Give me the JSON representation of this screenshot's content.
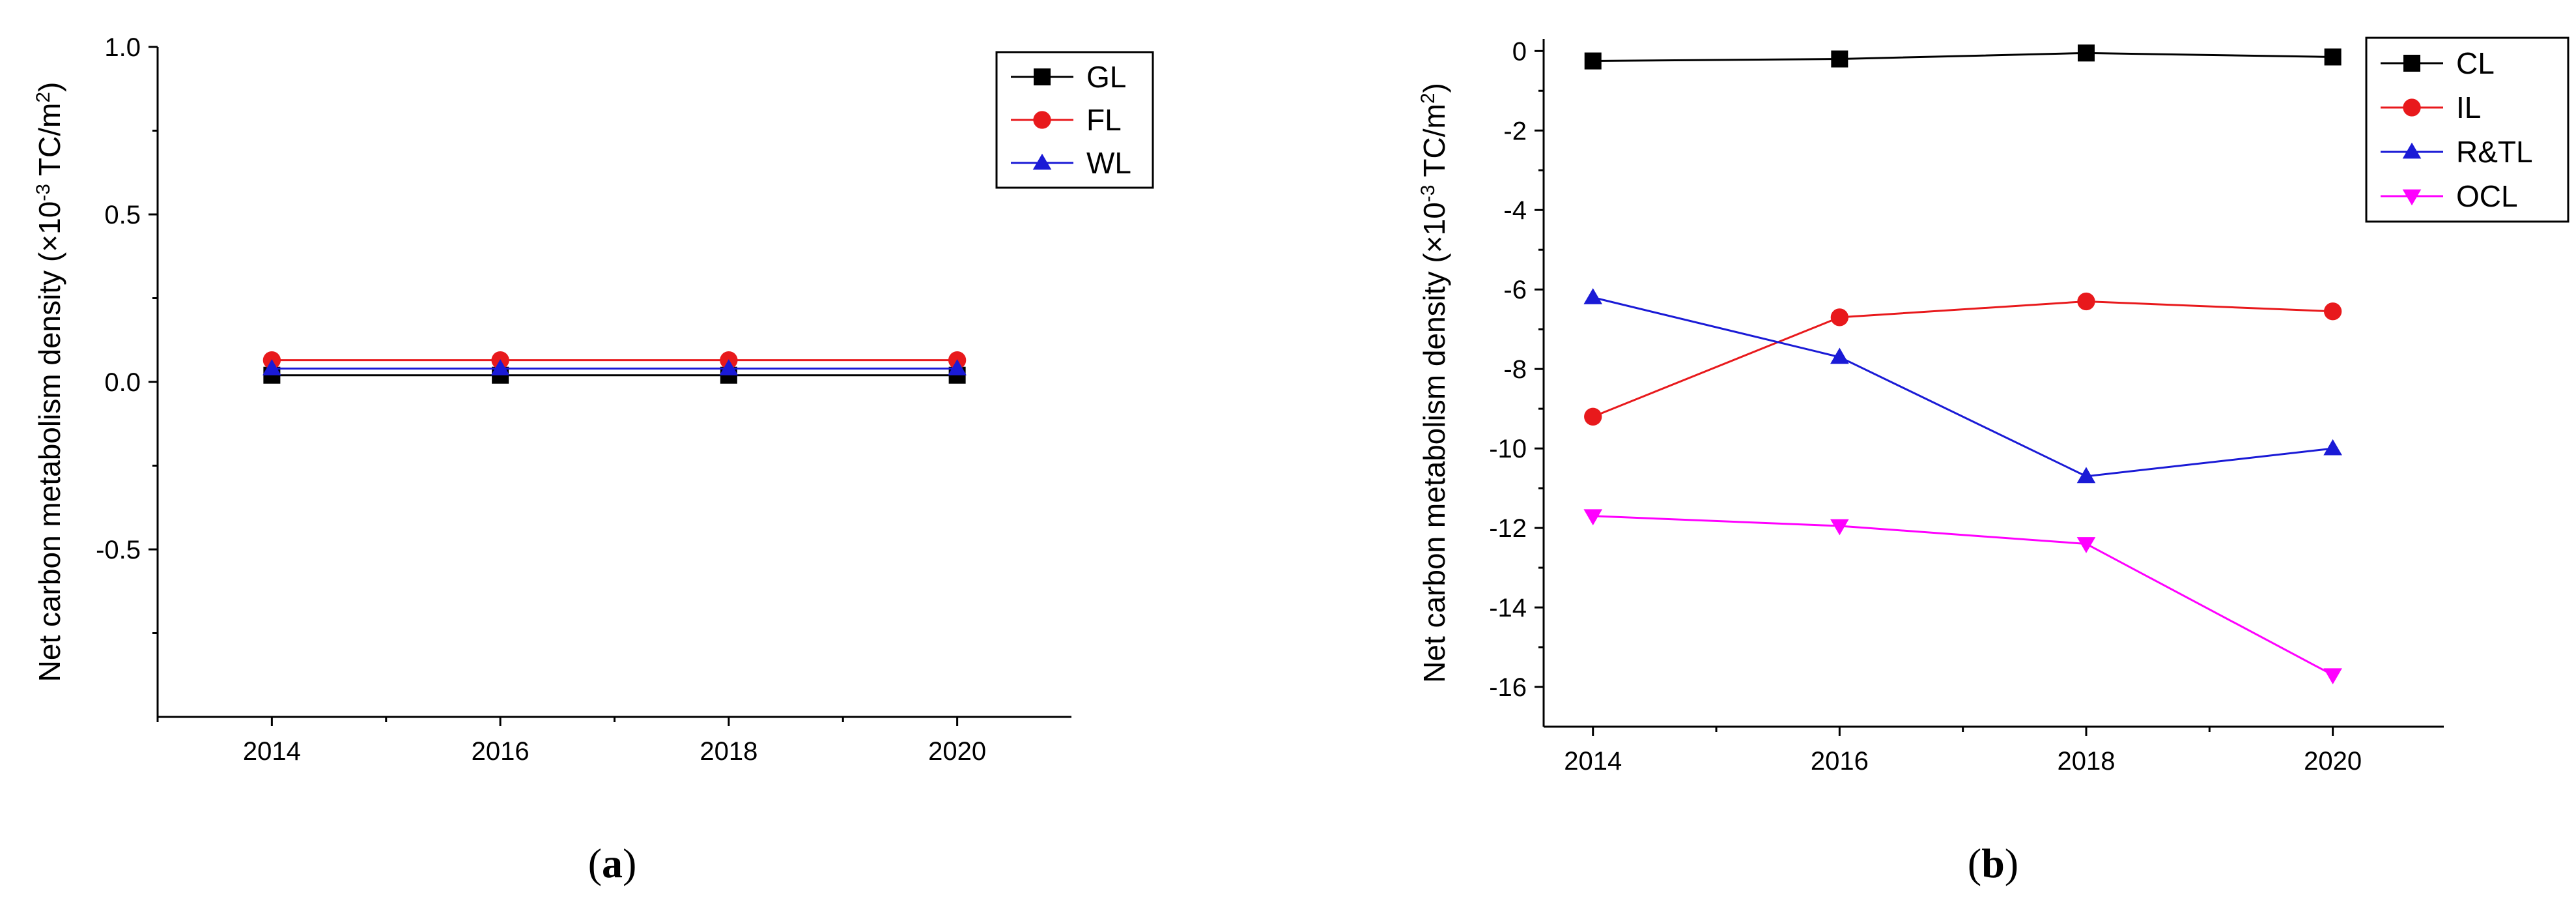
{
  "chart_data": [
    {
      "type": "line",
      "panel_label_pre": "(",
      "panel_label_letter": "a",
      "panel_label_post": ")",
      "ylabel_main": "Net carbon metabolism density (×10",
      "ylabel_exp": "-3",
      "ylabel_unit": " TC/m",
      "ylabel_sq": "2",
      "ylabel_close": ")",
      "x": [
        2014,
        2016,
        2018,
        2020
      ],
      "xlim": [
        2013,
        2021
      ],
      "ylim": [
        -1.0,
        1.0
      ],
      "xticks": [
        2014,
        2016,
        2018,
        2020
      ],
      "yticks": [
        -0.5,
        0.0,
        0.5,
        1.0
      ],
      "ytick_labels": [
        "-0.5",
        "0.0",
        "0.5",
        "1.0"
      ],
      "legend_position": "top-right",
      "series": [
        {
          "name": "GL",
          "values": [
            0.02,
            0.02,
            0.02,
            0.02
          ],
          "color": "#000000",
          "marker": "square"
        },
        {
          "name": "FL",
          "values": [
            0.065,
            0.065,
            0.065,
            0.065
          ],
          "color": "#e8191c",
          "marker": "circle"
        },
        {
          "name": "WL",
          "values": [
            0.04,
            0.04,
            0.04,
            0.04
          ],
          "color": "#1a1ad6",
          "marker": "triangle-up"
        }
      ]
    },
    {
      "type": "line",
      "panel_label_pre": "(",
      "panel_label_letter": "b",
      "panel_label_post": ")",
      "ylabel_main": "Net carbon metabolism density (×10",
      "ylabel_exp": "-3",
      "ylabel_unit": " TC/m",
      "ylabel_sq": "2",
      "ylabel_close": ")",
      "x": [
        2014,
        2016,
        2018,
        2020
      ],
      "xlim": [
        2013.6,
        2020.9
      ],
      "ylim": [
        -17,
        0.3
      ],
      "xticks": [
        2014,
        2016,
        2018,
        2020
      ],
      "yticks": [
        0,
        -2,
        -4,
        -6,
        -8,
        -10,
        -12,
        -14,
        -16
      ],
      "ytick_labels": [
        "0",
        "-2",
        "-4",
        "-6",
        "-8",
        "-10",
        "-12",
        "-14",
        "-16"
      ],
      "legend_position": "top-right",
      "series": [
        {
          "name": "CL",
          "values": [
            -0.25,
            -0.2,
            -0.05,
            -0.15
          ],
          "color": "#000000",
          "marker": "square"
        },
        {
          "name": "IL",
          "values": [
            -9.2,
            -6.7,
            -6.3,
            -6.55
          ],
          "color": "#e8191c",
          "marker": "circle"
        },
        {
          "name": "R&TL",
          "values": [
            -6.2,
            -7.7,
            -10.7,
            -10.0
          ],
          "color": "#1a1ad6",
          "marker": "triangle-up"
        },
        {
          "name": "OCL",
          "values": [
            -11.7,
            -11.95,
            -12.4,
            -15.7
          ],
          "color": "#ff00ff",
          "marker": "triangle-down"
        }
      ]
    }
  ]
}
